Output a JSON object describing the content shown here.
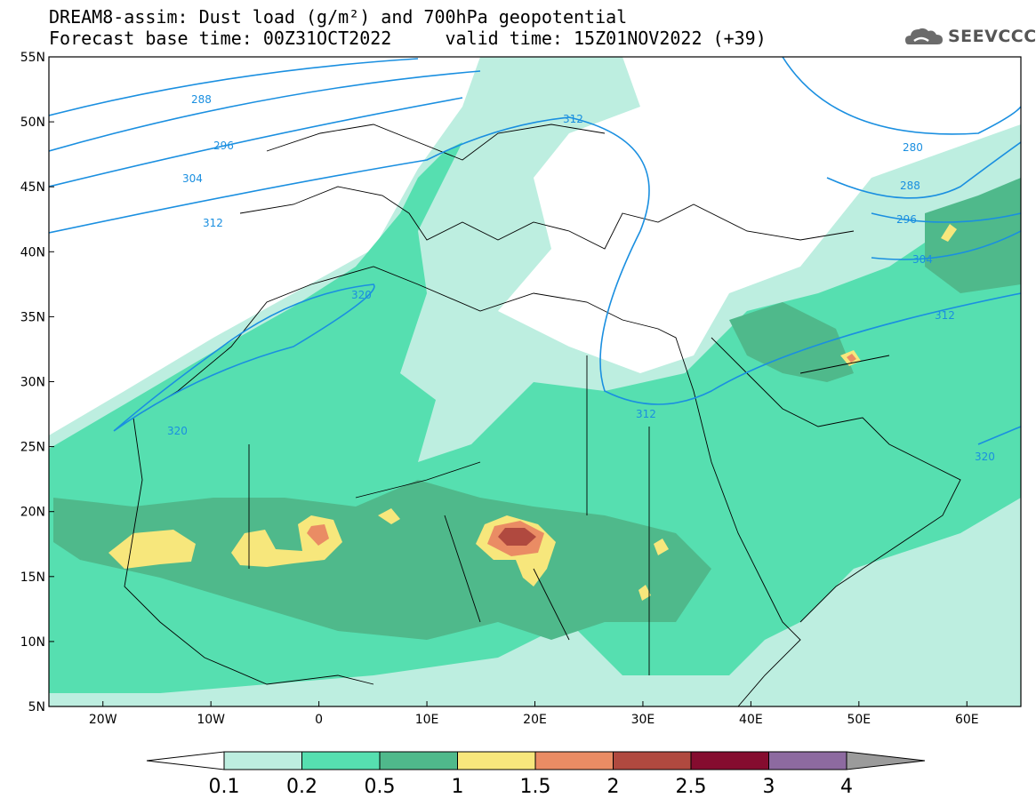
{
  "header": {
    "title_line1": "DREAM8-assim: Dust load (g/m²) and 700hPa geopotential",
    "title_line2": "Forecast base time: 00Z31OCT2022     valid time: 15Z01NOV2022 (+39)"
  },
  "logo": {
    "text": "SEEVCCC",
    "icon": "cloud-icon"
  },
  "map": {
    "lon_range": [
      -25,
      65
    ],
    "lat_range": [
      5,
      55
    ],
    "lat_ticks": [
      "55N",
      "50N",
      "45N",
      "40N",
      "35N",
      "30N",
      "25N",
      "20N",
      "15N",
      "10N",
      "5N"
    ],
    "lon_ticks": [
      "20W",
      "10W",
      "0",
      "10E",
      "20E",
      "30E",
      "40E",
      "50E",
      "60E"
    ],
    "contour_labels": [
      "280",
      "288",
      "296",
      "304",
      "312",
      "320"
    ],
    "contour_color": "#1a8fe0"
  },
  "colorbar": {
    "labels": [
      "0.1",
      "0.2",
      "0.5",
      "1",
      "1.5",
      "2",
      "2.5",
      "3",
      "4"
    ],
    "colors": [
      "#ffffff",
      "#bdeee0",
      "#56dfb0",
      "#4fb98b",
      "#f7e77c",
      "#ea8c64",
      "#b0493f",
      "#850c2f",
      "#8d6aa0",
      "#9b9b9b"
    ]
  }
}
